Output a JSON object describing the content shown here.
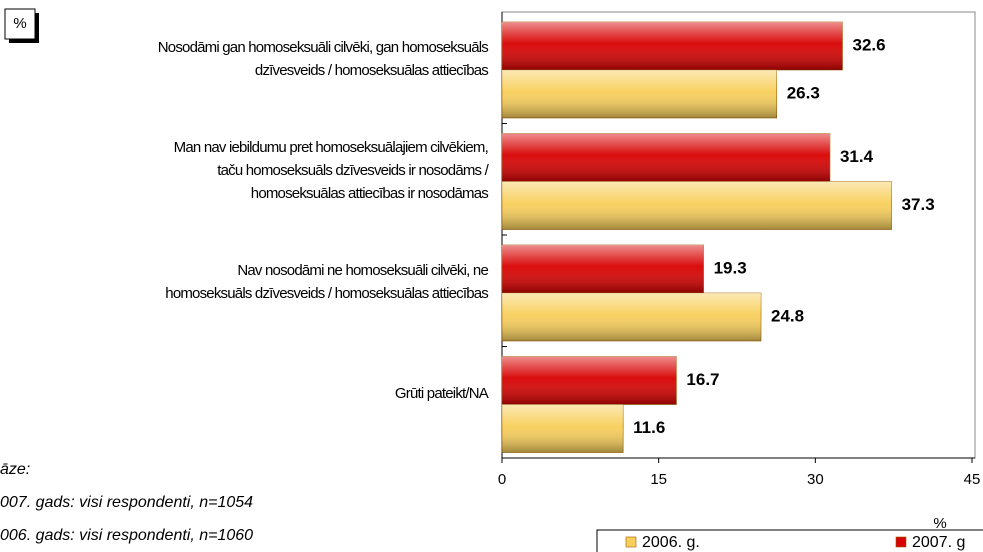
{
  "chart_data": {
    "type": "bar",
    "orientation": "horizontal",
    "unit_box": "%",
    "x_label": "%",
    "categories": [
      [
        "Nosodāmi gan homoseksuāli cilvēki, gan homoseksuāls",
        "dzīvesveids / homoseksuālas attiecības"
      ],
      [
        "Man nav iebildumu pret homoseksuālajiem cilvēkiem,",
        "taču homoseksuāls dzīvesveids ir nosodāms /",
        "homoseksuālas attiecības ir nosodāmas"
      ],
      [
        "Nav nosodāmi ne homoseksuāli cilvēki, ne",
        "homoseksuāls dzīvesveids / homoseksuālas attiecības"
      ],
      [
        "Grūti pateikt/NA"
      ]
    ],
    "series": [
      {
        "name": "2006. g.",
        "color": "#f8cf5a",
        "values": [
          26.3,
          37.3,
          24.8,
          11.6
        ]
      },
      {
        "name": "2007. g",
        "color": "#d80000",
        "values": [
          32.6,
          31.4,
          19.3,
          16.7
        ]
      }
    ],
    "xlim": [
      0,
      45
    ],
    "xticks": [
      0,
      15,
      30,
      45
    ],
    "notes": [
      "āze:",
      "007. gads: visi respondenti, n=1054",
      "006. gads: visi respondenti, n=1060"
    ]
  }
}
